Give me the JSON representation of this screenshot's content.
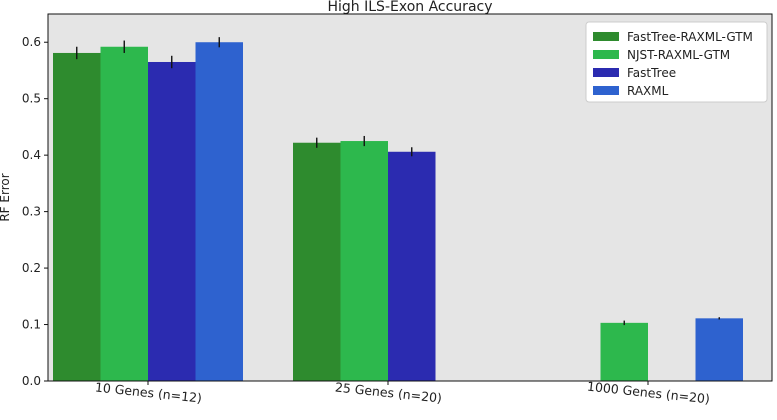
{
  "chart_data": {
    "type": "bar",
    "title": "High ILS-Exon Accuracy",
    "xlabel": "",
    "ylabel": "RF Error",
    "ylim": [
      0,
      0.65
    ],
    "yticks": [
      "0.0",
      "0.1",
      "0.2",
      "0.3",
      "0.4",
      "0.5",
      "0.6"
    ],
    "grid": false,
    "legend_position": "top-right",
    "background": "#e5e5e5",
    "categories": [
      "10 Genes (n=12)",
      "25 Genes (n=20)",
      "1000 Genes (n=20)"
    ],
    "series": [
      {
        "name": "FastTree-RAXML-GTM",
        "color": "#2e8b2e",
        "values": [
          0.581,
          0.422,
          null
        ],
        "errors": [
          0.011,
          0.009,
          null
        ]
      },
      {
        "name": "NJST-RAXML-GTM",
        "color": "#2db84d",
        "values": [
          0.592,
          0.425,
          0.103
        ],
        "errors": [
          0.011,
          0.009,
          0.004
        ]
      },
      {
        "name": "FastTree",
        "color": "#2b2bb0",
        "values": [
          0.565,
          0.406,
          null
        ],
        "errors": [
          0.011,
          0.008,
          null
        ]
      },
      {
        "name": "RAXML",
        "color": "#2e62cf",
        "values": [
          0.6,
          null,
          0.111
        ],
        "errors": [
          0.009,
          null,
          0.002
        ]
      }
    ]
  }
}
